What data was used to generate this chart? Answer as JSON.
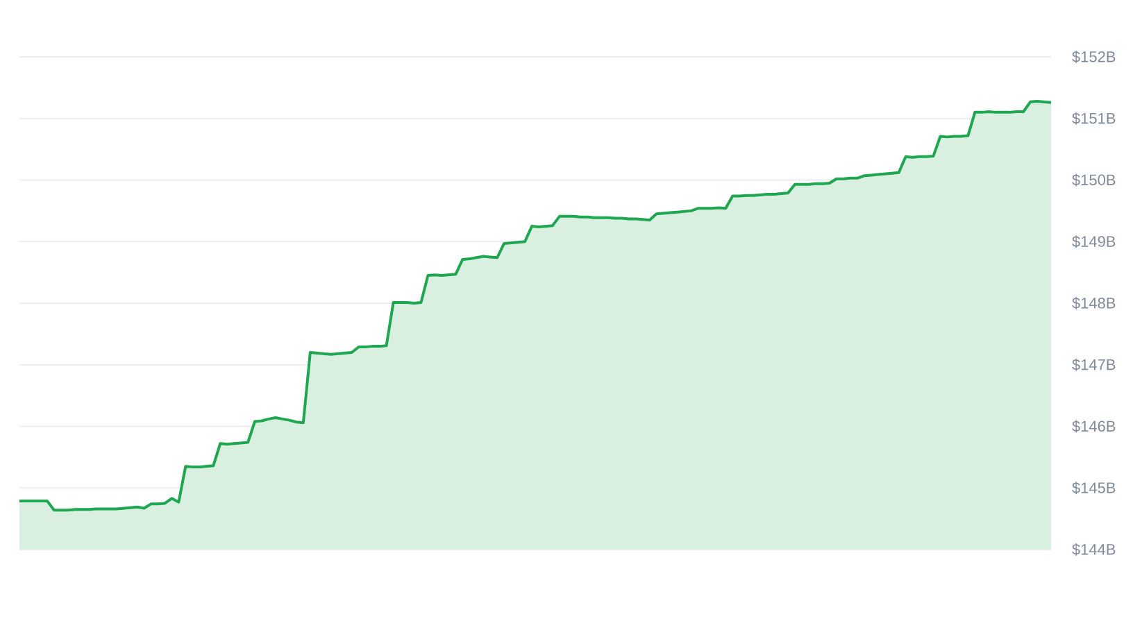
{
  "chart_data": {
    "type": "area",
    "categories": [
      null,
      null,
      null,
      null,
      null,
      null,
      null,
      null,
      null,
      null,
      null,
      null,
      null,
      null,
      null,
      null,
      null,
      null,
      null,
      null,
      null,
      null,
      null,
      null,
      null,
      null,
      null,
      null,
      null,
      null,
      null,
      null,
      null,
      null,
      null,
      null,
      null,
      null,
      null,
      null,
      null,
      null,
      null,
      null,
      null,
      null,
      null,
      null,
      null,
      null,
      null,
      null,
      null,
      null,
      null,
      null,
      null,
      null,
      null,
      null,
      null,
      null,
      null,
      null,
      null,
      null,
      null,
      null,
      null,
      null,
      null,
      null,
      null,
      null,
      null,
      null,
      null,
      null,
      null,
      null,
      null,
      null,
      null,
      null,
      null,
      null,
      null,
      null,
      null,
      null,
      null,
      null,
      null,
      null,
      null,
      null,
      null,
      null,
      null,
      null,
      null,
      null,
      null,
      null,
      null,
      null,
      null,
      null,
      null,
      null,
      null,
      null,
      null,
      null,
      null,
      null,
      null,
      null,
      null,
      null,
      null,
      null,
      null,
      null,
      null,
      null,
      null,
      null,
      null,
      null,
      null,
      null,
      null,
      null,
      null,
      null,
      null,
      null,
      null,
      null,
      null,
      null,
      null,
      null,
      null,
      null,
      null,
      null,
      null,
      null
    ],
    "values": [
      144.79,
      144.79,
      144.79,
      144.79,
      144.79,
      144.64,
      144.64,
      144.64,
      144.65,
      144.65,
      144.65,
      144.66,
      144.66,
      144.66,
      144.66,
      144.67,
      144.68,
      144.69,
      144.67,
      144.74,
      144.74,
      144.75,
      144.83,
      144.77,
      145.35,
      145.34,
      145.34,
      145.35,
      145.36,
      145.72,
      145.71,
      145.72,
      145.73,
      145.74,
      146.08,
      146.09,
      146.12,
      146.14,
      146.12,
      146.1,
      146.07,
      146.06,
      147.2,
      147.19,
      147.18,
      147.17,
      147.18,
      147.19,
      147.2,
      147.29,
      147.29,
      147.3,
      147.3,
      147.31,
      148.01,
      148.01,
      148.01,
      148.0,
      148.01,
      148.45,
      148.46,
      148.45,
      148.46,
      148.47,
      148.71,
      148.72,
      148.74,
      148.76,
      148.75,
      148.74,
      148.97,
      148.98,
      148.99,
      149.0,
      149.25,
      149.24,
      149.25,
      149.26,
      149.41,
      149.41,
      149.41,
      149.4,
      149.4,
      149.39,
      149.39,
      149.39,
      149.38,
      149.38,
      149.37,
      149.37,
      149.36,
      149.35,
      149.45,
      149.46,
      149.47,
      149.48,
      149.49,
      149.5,
      149.54,
      149.54,
      149.54,
      149.55,
      149.54,
      149.74,
      149.74,
      149.75,
      149.75,
      149.76,
      149.77,
      149.77,
      149.78,
      149.79,
      149.93,
      149.93,
      149.93,
      149.94,
      149.94,
      149.95,
      150.02,
      150.02,
      150.03,
      150.03,
      150.07,
      150.08,
      150.09,
      150.1,
      150.11,
      150.12,
      150.38,
      150.37,
      150.38,
      150.38,
      150.39,
      150.71,
      150.7,
      150.71,
      150.71,
      150.72,
      151.1,
      151.1,
      151.11,
      151.1,
      151.1,
      151.1,
      151.11,
      151.11,
      151.27,
      151.28,
      151.27,
      151.26
    ],
    "color": "#1fa650",
    "ylim": [
      144,
      152
    ],
    "yticks": [
      {
        "value": 144,
        "label": "$144B"
      },
      {
        "value": 145,
        "label": "$145B"
      },
      {
        "value": 146,
        "label": "$146B"
      },
      {
        "value": 147,
        "label": "$147B"
      },
      {
        "value": 148,
        "label": "$148B"
      },
      {
        "value": 149,
        "label": "$149B"
      },
      {
        "value": 150,
        "label": "$150B"
      },
      {
        "value": 151,
        "label": "$151B"
      },
      {
        "value": 152,
        "label": "$152B"
      }
    ],
    "grid": "y",
    "tick_labels": "y",
    "line_style": "solid"
  }
}
